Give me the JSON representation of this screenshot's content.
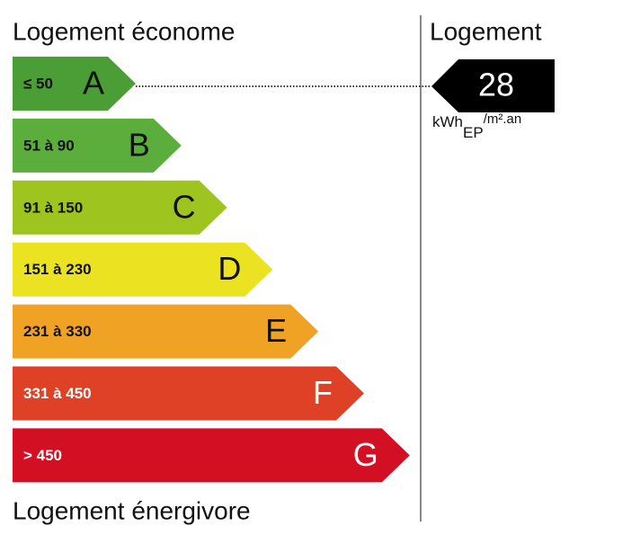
{
  "header": {
    "left": "Logement économe",
    "right": "Logement"
  },
  "classes": [
    {
      "range": "≤ 50",
      "letter": "A",
      "color": "#4b9d35",
      "text_color": "#111111"
    },
    {
      "range": "51 à 90",
      "letter": "B",
      "color": "#5bae3c",
      "text_color": "#111111"
    },
    {
      "range": "91 à 150",
      "letter": "C",
      "color": "#9dc41f",
      "text_color": "#111111"
    },
    {
      "range": "151 à 230",
      "letter": "D",
      "color": "#ebe321",
      "text_color": "#111111"
    },
    {
      "range": "231 à 330",
      "letter": "E",
      "color": "#efa223",
      "text_color": "#111111"
    },
    {
      "range": "331 à 450",
      "letter": "F",
      "color": "#df4126",
      "text_color": "#ffffff"
    },
    {
      "range": "> 450",
      "letter": "G",
      "color": "#d30f24",
      "text_color": "#ffffff"
    }
  ],
  "footer": "Logement énergivore",
  "indicator": {
    "value": "28",
    "unit": "kWh",
    "unit_sub": "EP",
    "unit_tail": "/m².an"
  }
}
